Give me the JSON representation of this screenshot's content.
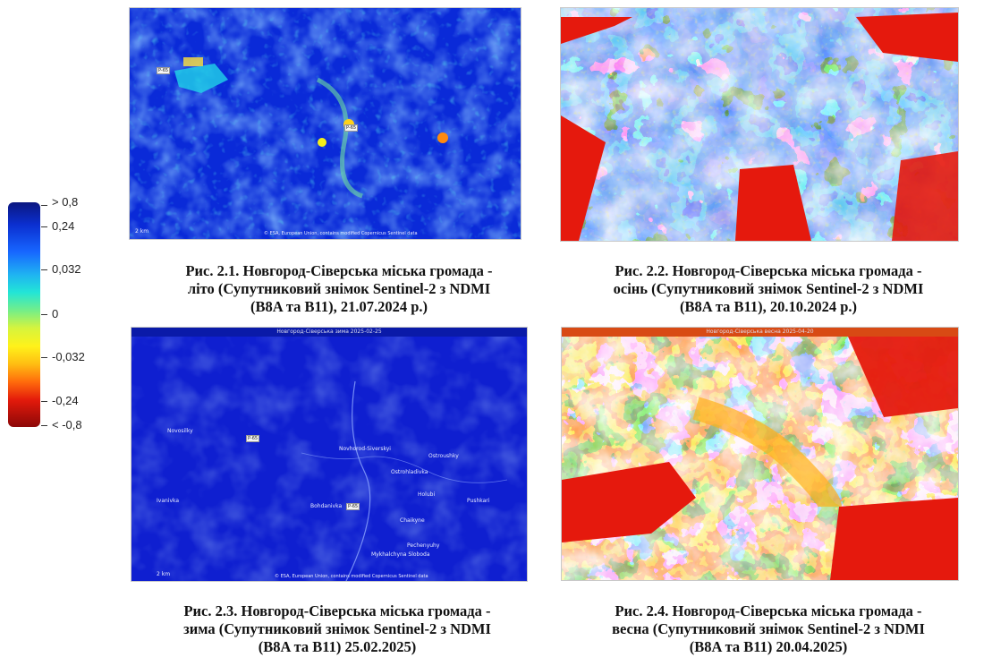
{
  "legend": {
    "labels": [
      "> 0,8",
      "0,24",
      "0,032",
      "0",
      "-0,032",
      "-0,24",
      "< -0,8"
    ]
  },
  "figures": [
    {
      "caption": [
        "Рис. 2.1. Новгород-Сіверська міська громада -",
        "літо (Супутниковий знімок Sentinel-2 з NDMI",
        "(B8A та B11), 21.07.2024 р.)"
      ],
      "season": "summer"
    },
    {
      "caption": [
        "Рис. 2.2. Новгород-Сіверська міська громада -",
        "осінь (Супутниковий знімок Sentinel-2 з NDMI",
        "(B8A та B11), 20.10.2024 р.)"
      ],
      "season": "autumn"
    },
    {
      "caption": [
        "Рис. 2.3. Новгород-Сіверська міська громада -",
        "зима (Супутниковий знімок Sentinel-2 з NDMI",
        "(B8A та B11)  25.02.2025)"
      ],
      "season": "winter",
      "place_names": [
        "Novosilky",
        "Novhorod-Siverskyi",
        "Ostrohladivka",
        "Ostroushky",
        "Bohdanivka",
        "Holubi",
        "Pushkari",
        "Ivanivka",
        "Pechenyuhy",
        "Chaikyne",
        "Mykhalchyna Sloboda"
      ],
      "road_badge": "P-65"
    },
    {
      "caption": [
        "Рис. 2.4. Новгород-Сіверська міська громада -",
        "весна (Супутниковий знімок Sentinel-2 з NDMI",
        "(B8A та B11) 20.04.2025)"
      ],
      "season": "spring"
    }
  ],
  "colors": {
    "deep_blue": "#0a2ad8",
    "blue": "#1660ff",
    "cyan": "#1fd0e8",
    "yellow": "#f2ee1a",
    "orange": "#ff8a10",
    "red": "#e5190d"
  }
}
